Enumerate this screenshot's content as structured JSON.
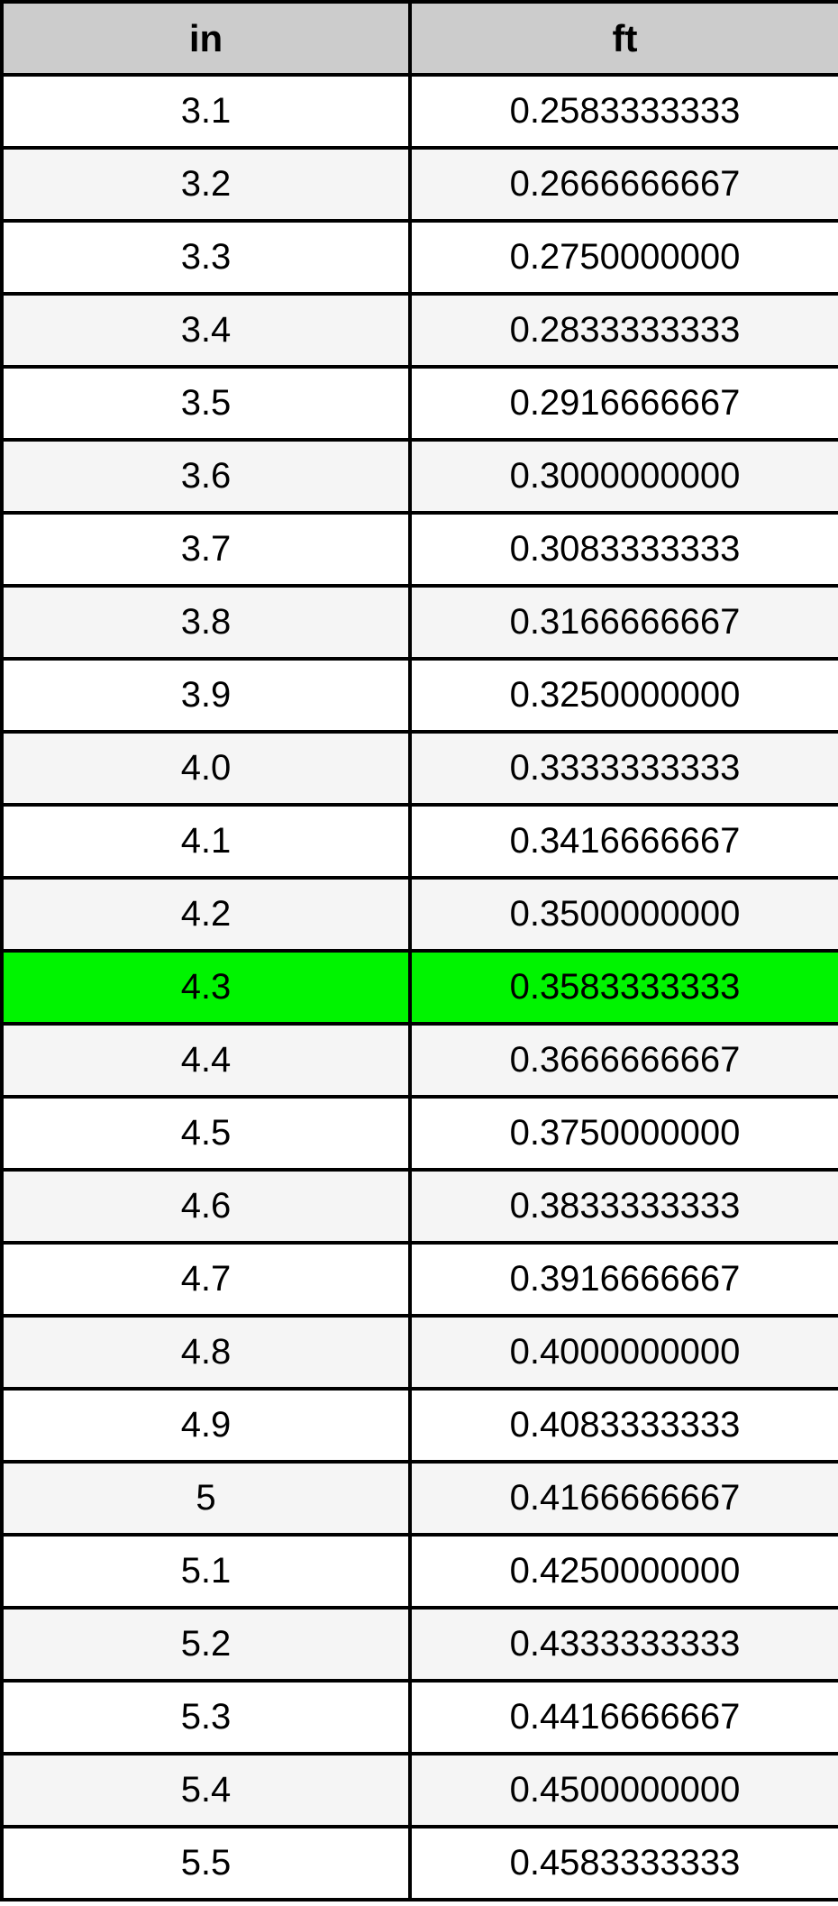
{
  "table": {
    "columns": [
      {
        "key": "in",
        "label": "in"
      },
      {
        "key": "ft",
        "label": "ft"
      }
    ],
    "rows": [
      {
        "in": "3.1",
        "ft": "0.2583333333",
        "highlight": false
      },
      {
        "in": "3.2",
        "ft": "0.2666666667",
        "highlight": false
      },
      {
        "in": "3.3",
        "ft": "0.2750000000",
        "highlight": false
      },
      {
        "in": "3.4",
        "ft": "0.2833333333",
        "highlight": false
      },
      {
        "in": "3.5",
        "ft": "0.2916666667",
        "highlight": false
      },
      {
        "in": "3.6",
        "ft": "0.3000000000",
        "highlight": false
      },
      {
        "in": "3.7",
        "ft": "0.3083333333",
        "highlight": false
      },
      {
        "in": "3.8",
        "ft": "0.3166666667",
        "highlight": false
      },
      {
        "in": "3.9",
        "ft": "0.3250000000",
        "highlight": false
      },
      {
        "in": "4.0",
        "ft": "0.3333333333",
        "highlight": false
      },
      {
        "in": "4.1",
        "ft": "0.3416666667",
        "highlight": false
      },
      {
        "in": "4.2",
        "ft": "0.3500000000",
        "highlight": false
      },
      {
        "in": "4.3",
        "ft": "0.3583333333",
        "highlight": true
      },
      {
        "in": "4.4",
        "ft": "0.3666666667",
        "highlight": false
      },
      {
        "in": "4.5",
        "ft": "0.3750000000",
        "highlight": false
      },
      {
        "in": "4.6",
        "ft": "0.3833333333",
        "highlight": false
      },
      {
        "in": "4.7",
        "ft": "0.3916666667",
        "highlight": false
      },
      {
        "in": "4.8",
        "ft": "0.4000000000",
        "highlight": false
      },
      {
        "in": "4.9",
        "ft": "0.4083333333",
        "highlight": false
      },
      {
        "in": "5",
        "ft": "0.4166666667",
        "highlight": false
      },
      {
        "in": "5.1",
        "ft": "0.4250000000",
        "highlight": false
      },
      {
        "in": "5.2",
        "ft": "0.4333333333",
        "highlight": false
      },
      {
        "in": "5.3",
        "ft": "0.4416666667",
        "highlight": false
      },
      {
        "in": "5.4",
        "ft": "0.4500000000",
        "highlight": false
      },
      {
        "in": "5.5",
        "ft": "0.4583333333",
        "highlight": false
      }
    ],
    "colors": {
      "header_bg": "#cccccc",
      "row_odd_bg": "#ffffff",
      "row_even_bg": "#f5f5f5",
      "highlight_bg": "#00f400",
      "border": "#000000"
    }
  },
  "chart_data": {
    "type": "table",
    "title": "",
    "columns": [
      "in",
      "ft"
    ],
    "rows": [
      [
        3.1,
        0.2583333333
      ],
      [
        3.2,
        0.2666666667
      ],
      [
        3.3,
        0.275
      ],
      [
        3.4,
        0.2833333333
      ],
      [
        3.5,
        0.2916666667
      ],
      [
        3.6,
        0.3
      ],
      [
        3.7,
        0.3083333333
      ],
      [
        3.8,
        0.3166666667
      ],
      [
        3.9,
        0.325
      ],
      [
        4.0,
        0.3333333333
      ],
      [
        4.1,
        0.3416666667
      ],
      [
        4.2,
        0.35
      ],
      [
        4.3,
        0.3583333333
      ],
      [
        4.4,
        0.3666666667
      ],
      [
        4.5,
        0.375
      ],
      [
        4.6,
        0.3833333333
      ],
      [
        4.7,
        0.3916666667
      ],
      [
        4.8,
        0.4
      ],
      [
        4.9,
        0.4083333333
      ],
      [
        5.0,
        0.4166666667
      ],
      [
        5.1,
        0.425
      ],
      [
        5.2,
        0.4333333333
      ],
      [
        5.3,
        0.4416666667
      ],
      [
        5.4,
        0.45
      ],
      [
        5.5,
        0.4583333333
      ]
    ],
    "highlighted_row": [
      4.3,
      0.3583333333
    ],
    "layout": {
      "grid": true,
      "legend": "none"
    }
  }
}
